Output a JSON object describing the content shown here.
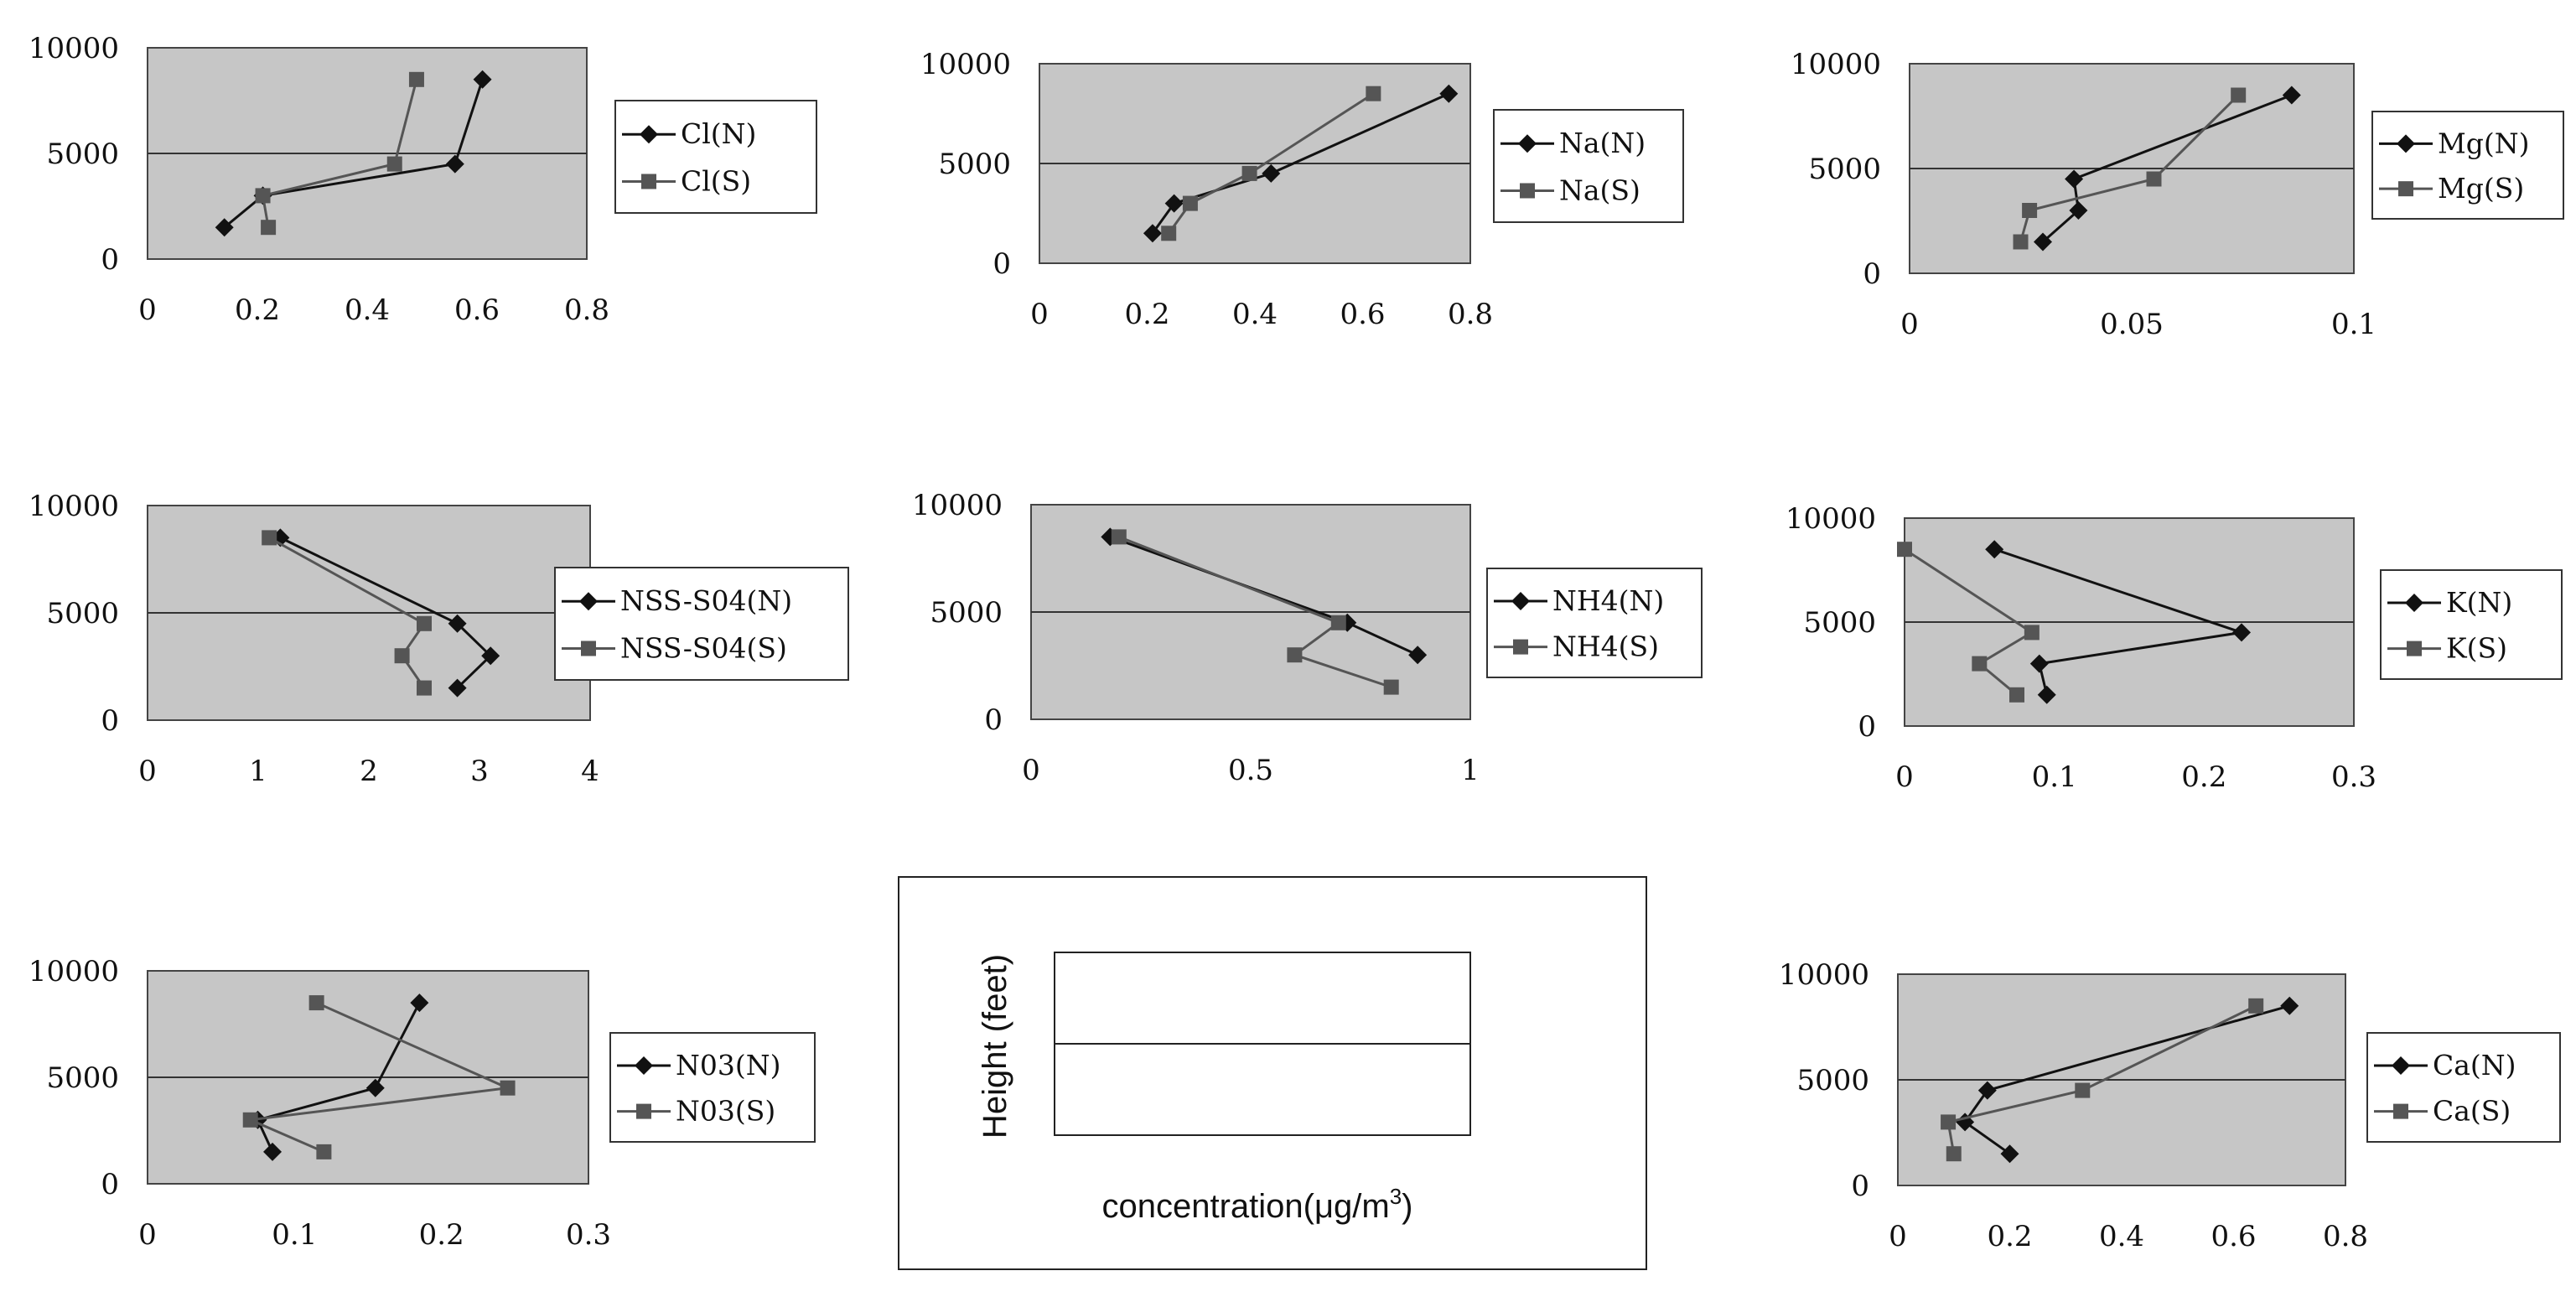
{
  "colors": {
    "plot_bg": "#c6c6c6",
    "series_n": "#111111",
    "series_s": "#555555",
    "ref_line": "#333333"
  },
  "chart_data": [
    {
      "type": "line",
      "xlim": [
        0,
        0.8
      ],
      "ylim": [
        0,
        10000
      ],
      "xticks": [
        "0",
        "0.2",
        "0.4",
        "0.6",
        "0.8"
      ],
      "yticks": [
        "0",
        "5000",
        "10000"
      ],
      "legend_position": "right",
      "grid": "horizontal line at 5000",
      "series": [
        {
          "name": "Cl(N)",
          "marker": "diamond",
          "points": [
            [
              0.14,
              1500
            ],
            [
              0.21,
              3000
            ],
            [
              0.56,
              4500
            ],
            [
              0.61,
              8500
            ]
          ]
        },
        {
          "name": "Cl(S)",
          "marker": "square",
          "points": [
            [
              0.22,
              1500
            ],
            [
              0.21,
              3000
            ],
            [
              0.45,
              4500
            ],
            [
              0.49,
              8500
            ]
          ]
        }
      ]
    },
    {
      "type": "line",
      "xlim": [
        0,
        0.8
      ],
      "ylim": [
        0,
        10000
      ],
      "xticks": [
        "0",
        "0.2",
        "0.4",
        "0.6",
        "0.8"
      ],
      "yticks": [
        "0",
        "5000",
        "10000"
      ],
      "legend_position": "right",
      "grid": "horizontal line at 5000",
      "series": [
        {
          "name": "Na(N)",
          "marker": "diamond",
          "points": [
            [
              0.21,
              1500
            ],
            [
              0.25,
              3000
            ],
            [
              0.43,
              4500
            ],
            [
              0.76,
              8500
            ]
          ]
        },
        {
          "name": "Na(S)",
          "marker": "square",
          "points": [
            [
              0.24,
              1500
            ],
            [
              0.28,
              3000
            ],
            [
              0.39,
              4500
            ],
            [
              0.62,
              8500
            ]
          ]
        }
      ]
    },
    {
      "type": "line",
      "xlim": [
        0,
        0.1
      ],
      "ylim": [
        0,
        10000
      ],
      "xticks": [
        "0",
        "0.05",
        "0.1"
      ],
      "yticks": [
        "0",
        "5000",
        "10000"
      ],
      "legend_position": "right",
      "grid": "horizontal line at 5000",
      "series": [
        {
          "name": "Mg(N)",
          "marker": "diamond",
          "points": [
            [
              0.03,
              1500
            ],
            [
              0.038,
              3000
            ],
            [
              0.037,
              4500
            ],
            [
              0.086,
              8500
            ]
          ]
        },
        {
          "name": "Mg(S)",
          "marker": "square",
          "points": [
            [
              0.025,
              1500
            ],
            [
              0.027,
              3000
            ],
            [
              0.055,
              4500
            ],
            [
              0.074,
              8500
            ]
          ]
        }
      ]
    },
    {
      "type": "line",
      "xlim": [
        0,
        4
      ],
      "ylim": [
        0,
        10000
      ],
      "xticks": [
        "0",
        "1",
        "2",
        "3",
        "4"
      ],
      "yticks": [
        "0",
        "5000",
        "10000"
      ],
      "legend_position": "right",
      "grid": "horizontal line at 5000",
      "series": [
        {
          "name": "NSS-S04(N)",
          "marker": "diamond",
          "points": [
            [
              2.8,
              1500
            ],
            [
              3.1,
              3000
            ],
            [
              2.8,
              4500
            ],
            [
              1.2,
              8500
            ]
          ]
        },
        {
          "name": "NSS-S04(S)",
          "marker": "square",
          "points": [
            [
              2.5,
              1500
            ],
            [
              2.3,
              3000
            ],
            [
              2.5,
              4500
            ],
            [
              1.1,
              8500
            ]
          ]
        }
      ]
    },
    {
      "type": "line",
      "xlim": [
        0,
        1
      ],
      "ylim": [
        0,
        10000
      ],
      "xticks": [
        "0",
        "0.5",
        "1"
      ],
      "yticks": [
        "0",
        "5000",
        "10000"
      ],
      "legend_position": "right",
      "grid": "horizontal line at 5000",
      "series": [
        {
          "name": "NH4(N)",
          "marker": "diamond",
          "points": [
            [
              0.88,
              3000
            ],
            [
              0.72,
              4500
            ],
            [
              0.18,
              8500
            ]
          ]
        },
        {
          "name": "NH4(S)",
          "marker": "square",
          "points": [
            [
              0.82,
              1500
            ],
            [
              0.6,
              3000
            ],
            [
              0.7,
              4500
            ],
            [
              0.2,
              8500
            ]
          ]
        }
      ]
    },
    {
      "type": "line",
      "xlim": [
        0,
        0.3
      ],
      "ylim": [
        0,
        10000
      ],
      "xticks": [
        "0",
        "0.1",
        "0.2",
        "0.3"
      ],
      "yticks": [
        "0",
        "5000",
        "10000"
      ],
      "legend_position": "right",
      "grid": "horizontal line at 5000",
      "series": [
        {
          "name": "K(N)",
          "marker": "diamond",
          "points": [
            [
              0.095,
              1500
            ],
            [
              0.09,
              3000
            ],
            [
              0.225,
              4500
            ],
            [
              0.06,
              8500
            ]
          ]
        },
        {
          "name": "K(S)",
          "marker": "square",
          "points": [
            [
              0.075,
              1500
            ],
            [
              0.05,
              3000
            ],
            [
              0.085,
              4500
            ],
            [
              0.0,
              8500
            ]
          ]
        }
      ]
    },
    {
      "type": "line",
      "xlim": [
        0,
        0.3
      ],
      "ylim": [
        0,
        10000
      ],
      "xticks": [
        "0",
        "0.1",
        "0.2",
        "0.3"
      ],
      "yticks": [
        "0",
        "5000",
        "10000"
      ],
      "legend_position": "right",
      "grid": "horizontal line at 5000",
      "series": [
        {
          "name": "N03(N)",
          "marker": "diamond",
          "points": [
            [
              0.085,
              1500
            ],
            [
              0.075,
              3000
            ],
            [
              0.155,
              4500
            ],
            [
              0.185,
              8500
            ]
          ]
        },
        {
          "name": "N03(S)",
          "marker": "square",
          "points": [
            [
              0.12,
              1500
            ],
            [
              0.07,
              3000
            ],
            [
              0.245,
              4500
            ],
            [
              0.115,
              8500
            ]
          ]
        }
      ]
    },
    {
      "type": "line",
      "xlim": [
        0,
        0.8
      ],
      "ylim": [
        0,
        10000
      ],
      "xticks": [
        "0",
        "0.2",
        "0.4",
        "0.6",
        "0.8"
      ],
      "yticks": [
        "0",
        "5000",
        "10000"
      ],
      "legend_position": "right",
      "grid": "horizontal line at 5000",
      "series": [
        {
          "name": "Ca(N)",
          "marker": "diamond",
          "points": [
            [
              0.2,
              1500
            ],
            [
              0.12,
              3000
            ],
            [
              0.16,
              4500
            ],
            [
              0.7,
              8500
            ]
          ]
        },
        {
          "name": "Ca(S)",
          "marker": "square",
          "points": [
            [
              0.1,
              1500
            ],
            [
              0.09,
              3000
            ],
            [
              0.33,
              4500
            ],
            [
              0.64,
              8500
            ]
          ]
        }
      ]
    }
  ],
  "axis_key": {
    "ylabel": "Height (feet)",
    "xlabel_text": "concentration(",
    "xlabel_greek": "μ",
    "xlabel_unit": "g/m",
    "xlabel_exp": "3",
    "xlabel_close": ")"
  }
}
